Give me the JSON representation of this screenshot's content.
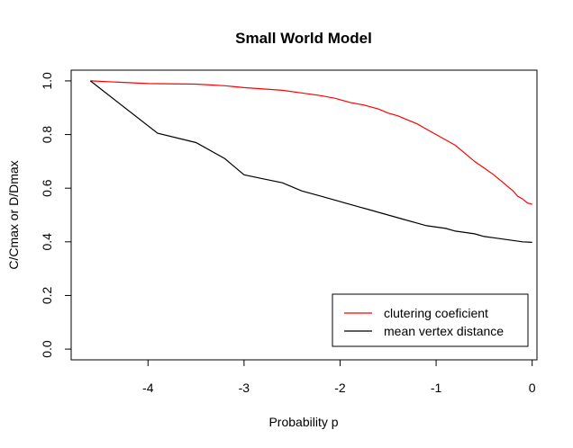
{
  "chart_data": {
    "type": "line",
    "title": "Small World Model",
    "xlabel": "Probability p",
    "ylabel": "C/Cmax or D/Dmax",
    "xlim": [
      -4.8,
      0.05
    ],
    "ylim": [
      -0.04,
      1.04
    ],
    "x_ticks": [
      -4,
      -3,
      -2,
      -1,
      0
    ],
    "x_tick_labels": [
      "-4",
      "-3",
      "-2",
      "-1",
      "0"
    ],
    "y_ticks": [
      0.0,
      0.2,
      0.4,
      0.6,
      0.8,
      1.0
    ],
    "y_tick_labels": [
      "0.0",
      "0.2",
      "0.4",
      "0.6",
      "0.8",
      "1.0"
    ],
    "grid": false,
    "legend_position": "bottom-right",
    "series": [
      {
        "name": "clutering coeficient",
        "color": "#ff0000",
        "x": [
          -4.6,
          -4.0,
          -3.5,
          -3.2,
          -3.0,
          -2.8,
          -2.6,
          -2.4,
          -2.2,
          -2.05,
          -1.9,
          -1.75,
          -1.6,
          -1.5,
          -1.4,
          -1.3,
          -1.2,
          -1.1,
          -1.0,
          -0.9,
          -0.8,
          -0.7,
          -0.6,
          -0.5,
          -0.4,
          -0.3,
          -0.2,
          -0.15,
          -0.1,
          -0.05,
          0.0
        ],
        "y": [
          1.0,
          0.99,
          0.988,
          0.982,
          0.975,
          0.97,
          0.965,
          0.955,
          0.945,
          0.935,
          0.92,
          0.91,
          0.895,
          0.88,
          0.87,
          0.855,
          0.84,
          0.82,
          0.8,
          0.78,
          0.76,
          0.73,
          0.7,
          0.675,
          0.65,
          0.62,
          0.59,
          0.57,
          0.56,
          0.545,
          0.54
        ]
      },
      {
        "name": "mean vertex distance",
        "color": "#000000",
        "x": [
          -4.6,
          -3.9,
          -3.5,
          -3.2,
          -3.0,
          -2.8,
          -2.6,
          -2.4,
          -2.2,
          -2.0,
          -1.9,
          -1.8,
          -1.7,
          -1.6,
          -1.5,
          -1.4,
          -1.3,
          -1.2,
          -1.1,
          -1.0,
          -0.9,
          -0.8,
          -0.7,
          -0.6,
          -0.5,
          -0.4,
          -0.3,
          -0.2,
          -0.1,
          0.0
        ],
        "y": [
          1.0,
          0.805,
          0.77,
          0.71,
          0.65,
          0.635,
          0.62,
          0.59,
          0.57,
          0.55,
          0.54,
          0.53,
          0.52,
          0.51,
          0.5,
          0.49,
          0.48,
          0.47,
          0.46,
          0.455,
          0.45,
          0.44,
          0.435,
          0.43,
          0.42,
          0.415,
          0.41,
          0.405,
          0.4,
          0.398
        ]
      }
    ]
  }
}
